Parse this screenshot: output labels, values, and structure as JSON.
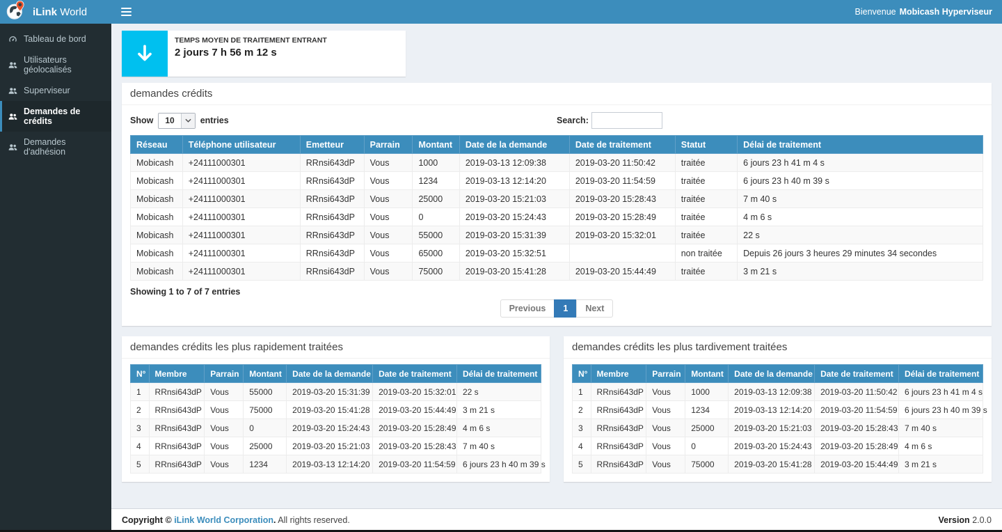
{
  "brand": {
    "bold": "iLink",
    "light": "World"
  },
  "topbar": {
    "welcome_prefix": "Bienvenue",
    "welcome_user": "Mobicash Hyperviseur"
  },
  "sidebar": {
    "items": [
      {
        "label": "Tableau de bord",
        "icon": "dashboard",
        "active": false
      },
      {
        "label": "Utilisateurs géolocalisés",
        "icon": "users",
        "active": false
      },
      {
        "label": "Superviseur",
        "icon": "users",
        "active": false
      },
      {
        "label": "Demandes de crédits",
        "icon": "users",
        "active": true
      },
      {
        "label": "Demandes d'adhésion",
        "icon": "users",
        "active": false
      }
    ]
  },
  "stat_card": {
    "icon": "arrow-down",
    "title": "TEMPS MOYEN DE TRAITEMENT ENTRANT",
    "value": "2 jours 7 h 56 m 12 s"
  },
  "credits_panel": {
    "title": "demandes crédits",
    "show_label": "Show",
    "page_size": "10",
    "entries_label": "entries",
    "search_label": "Search:",
    "columns": [
      "Réseau",
      "Téléphone utilisateur",
      "Emetteur",
      "Parrain",
      "Montant",
      "Date de la demande",
      "Date de traitement",
      "Statut",
      "Délai de traitement"
    ],
    "rows": [
      [
        "Mobicash",
        "+24111000301",
        "RRnsi643dP",
        "Vous",
        "1000",
        "2019-03-13 12:09:38",
        "2019-03-20 11:50:42",
        "traitée",
        "6 jours 23 h 41 m 4 s"
      ],
      [
        "Mobicash",
        "+24111000301",
        "RRnsi643dP",
        "Vous",
        "1234",
        "2019-03-13 12:14:20",
        "2019-03-20 11:54:59",
        "traitée",
        "6 jours 23 h 40 m 39 s"
      ],
      [
        "Mobicash",
        "+24111000301",
        "RRnsi643dP",
        "Vous",
        "25000",
        "2019-03-20 15:21:03",
        "2019-03-20 15:28:43",
        "traitée",
        "7 m 40 s"
      ],
      [
        "Mobicash",
        "+24111000301",
        "RRnsi643dP",
        "Vous",
        "0",
        "2019-03-20 15:24:43",
        "2019-03-20 15:28:49",
        "traitée",
        "4 m 6 s"
      ],
      [
        "Mobicash",
        "+24111000301",
        "RRnsi643dP",
        "Vous",
        "55000",
        "2019-03-20 15:31:39",
        "2019-03-20 15:32:01",
        "traitée",
        "22 s"
      ],
      [
        "Mobicash",
        "+24111000301",
        "RRnsi643dP",
        "Vous",
        "65000",
        "2019-03-20 15:32:51",
        "",
        "non traitée",
        "Depuis 26 jours 3 heures 29 minutes 34 secondes"
      ],
      [
        "Mobicash",
        "+24111000301",
        "RRnsi643dP",
        "Vous",
        "75000",
        "2019-03-20 15:41:28",
        "2019-03-20 15:44:49",
        "traitée",
        "3 m 21 s"
      ]
    ],
    "info": "Showing 1 to 7 of 7 entries",
    "pagination": {
      "previous": "Previous",
      "page": "1",
      "next": "Next"
    }
  },
  "fastest_panel": {
    "title": "demandes crédits les plus rapidement traitées",
    "columns": [
      "N°",
      "Membre",
      "Parrain",
      "Montant",
      "Date de la demande",
      "Date de traitement",
      "Délai de traitement"
    ],
    "rows": [
      [
        "1",
        "RRnsi643dP",
        "Vous",
        "55000",
        "2019-03-20 15:31:39",
        "2019-03-20 15:32:01",
        "22 s"
      ],
      [
        "2",
        "RRnsi643dP",
        "Vous",
        "75000",
        "2019-03-20 15:41:28",
        "2019-03-20 15:44:49",
        "3 m 21 s"
      ],
      [
        "3",
        "RRnsi643dP",
        "Vous",
        "0",
        "2019-03-20 15:24:43",
        "2019-03-20 15:28:49",
        "4 m 6 s"
      ],
      [
        "4",
        "RRnsi643dP",
        "Vous",
        "25000",
        "2019-03-20 15:21:03",
        "2019-03-20 15:28:43",
        "7 m 40 s"
      ],
      [
        "5",
        "RRnsi643dP",
        "Vous",
        "1234",
        "2019-03-13 12:14:20",
        "2019-03-20 11:54:59",
        "6 jours 23 h 40 m 39 s"
      ]
    ]
  },
  "slowest_panel": {
    "title": "demandes crédits les plus tardivement traitées",
    "columns": [
      "N°",
      "Membre",
      "Parrain",
      "Montant",
      "Date de la demande",
      "Date de traitement",
      "Délai de traitement"
    ],
    "rows": [
      [
        "1",
        "RRnsi643dP",
        "Vous",
        "1000",
        "2019-03-13 12:09:38",
        "2019-03-20 11:50:42",
        "6 jours 23 h 41 m 4 s"
      ],
      [
        "2",
        "RRnsi643dP",
        "Vous",
        "1234",
        "2019-03-13 12:14:20",
        "2019-03-20 11:54:59",
        "6 jours 23 h 40 m 39 s"
      ],
      [
        "3",
        "RRnsi643dP",
        "Vous",
        "25000",
        "2019-03-20 15:21:03",
        "2019-03-20 15:28:43",
        "7 m 40 s"
      ],
      [
        "4",
        "RRnsi643dP",
        "Vous",
        "0",
        "2019-03-20 15:24:43",
        "2019-03-20 15:28:49",
        "4 m 6 s"
      ],
      [
        "5",
        "RRnsi643dP",
        "Vous",
        "75000",
        "2019-03-20 15:41:28",
        "2019-03-20 15:44:49",
        "3 m 21 s"
      ]
    ]
  },
  "footer": {
    "copyright_prefix": "Copyright © ",
    "company": "iLink World Corporation",
    "copyright_dot": ".",
    "rights": " All rights reserved.",
    "version_label": "Version",
    "version_value": "2.0.0"
  },
  "colors": {
    "accent": "#3c8dbc",
    "sidebar_bg": "#222d32",
    "sidebar_active_bg": "#1e282c",
    "info_icon_bg": "#00c0ef",
    "pagination_active": "#337ab7",
    "content_bg": "#ecf0f5"
  }
}
